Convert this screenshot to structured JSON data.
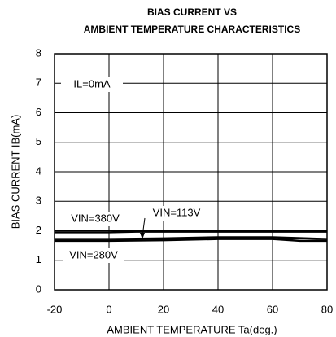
{
  "chart_data": {
    "type": "line",
    "title": [
      "BIAS CURRENT VS",
      "AMBIENT TEMPERATURE CHARACTERISTICS"
    ],
    "xlabel": "AMBIENT TEMPERATURE Ta(deg.)",
    "ylabel": "BIAS CURRENT IB(mA)",
    "xlim": [
      -20,
      80
    ],
    "xticks": [
      -20,
      0,
      20,
      40,
      60,
      80
    ],
    "ylim": [
      0,
      8
    ],
    "yticks": [
      0,
      1,
      2,
      3,
      4,
      5,
      6,
      7,
      8
    ],
    "grid": true,
    "annotations": [
      "IL=0mA",
      "VIN=380V",
      "VIN=113V",
      "VIN=280V"
    ],
    "series": [
      {
        "name": "VIN=380V",
        "color": "#000000",
        "x": [
          -20,
          0,
          10,
          20,
          40,
          60,
          80
        ],
        "values": [
          1.95,
          1.95,
          1.97,
          1.97,
          1.97,
          1.97,
          1.97
        ]
      },
      {
        "name": "VIN=113V",
        "color": "#000000",
        "x": [
          -20,
          0,
          20,
          40,
          60,
          80
        ],
        "values": [
          1.72,
          1.72,
          1.74,
          1.78,
          1.78,
          1.72
        ]
      },
      {
        "name": "VIN=280V",
        "color": "#000000",
        "x": [
          -20,
          0,
          20,
          40,
          60,
          70,
          80
        ],
        "values": [
          1.66,
          1.66,
          1.68,
          1.72,
          1.72,
          1.66,
          1.66
        ]
      }
    ]
  }
}
